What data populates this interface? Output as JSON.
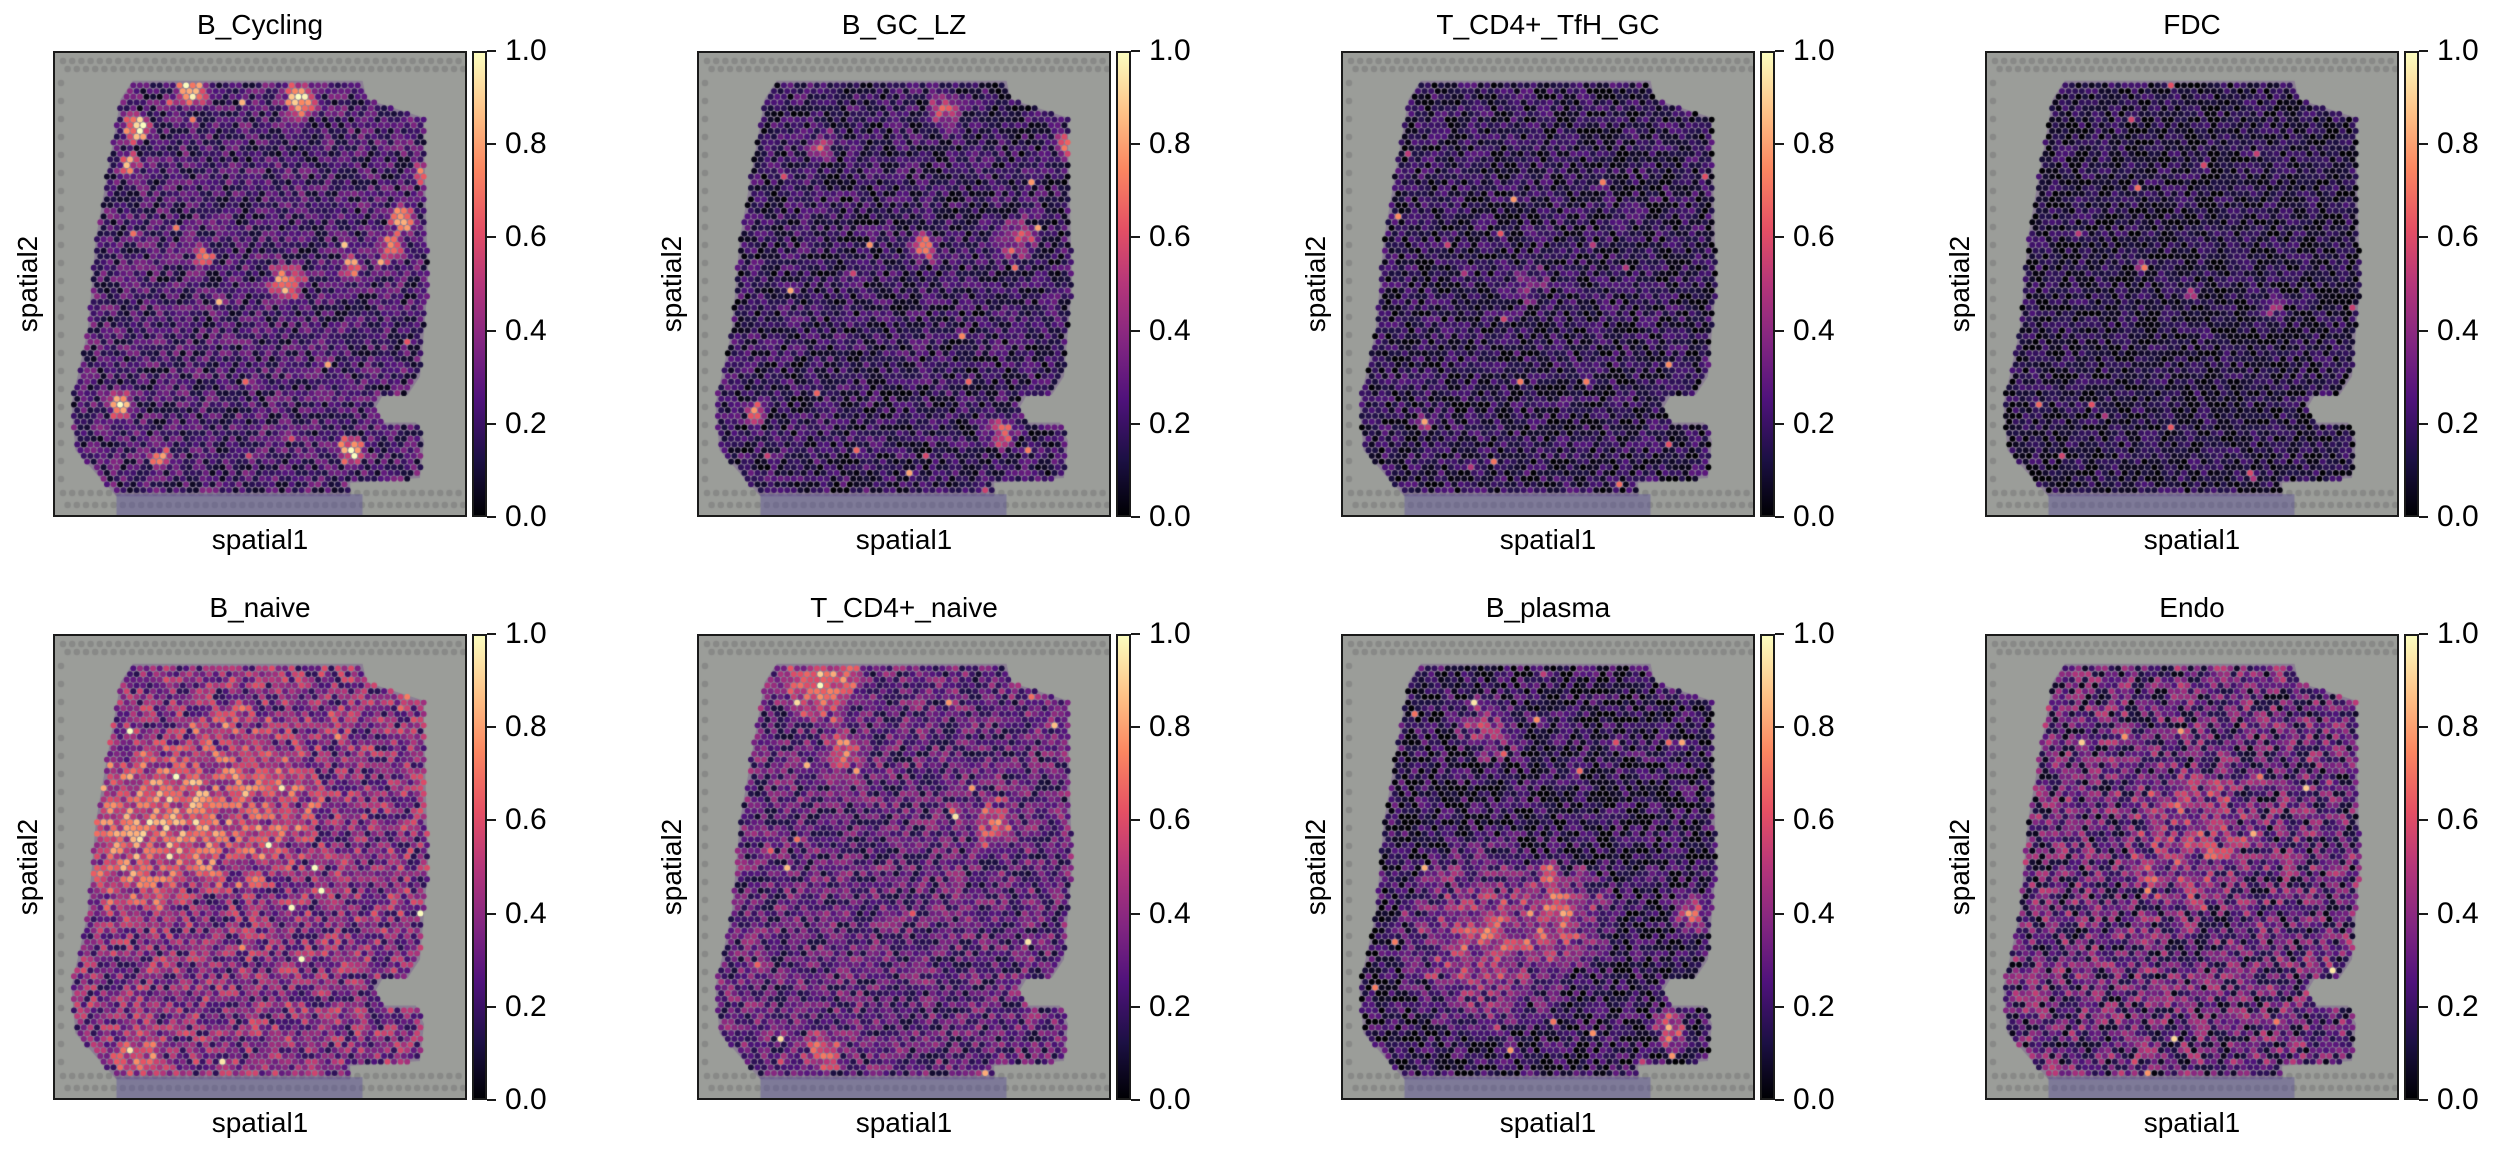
{
  "figure": {
    "colormap": "magma",
    "background_color": "#9b9d99",
    "border_color": "#1a1a1a"
  },
  "chart_data": [
    {
      "type": "heatmap",
      "title": "B_Cycling",
      "xlabel": "spatial1",
      "ylabel": "spatial2",
      "vmin": 0.0,
      "vmax": 1.0,
      "colorbar_ticks": [
        "0.0",
        "0.2",
        "0.4",
        "0.6",
        "0.8",
        "1.0"
      ],
      "pattern": "discrete bright follicle-like clusters"
    },
    {
      "type": "heatmap",
      "title": "B_GC_LZ",
      "xlabel": "spatial1",
      "ylabel": "spatial2",
      "vmin": 0.0,
      "vmax": 1.0,
      "colorbar_ticks": [
        "0.0",
        "0.2",
        "0.4",
        "0.6",
        "0.8",
        "1.0"
      ],
      "pattern": "scattered moderate clusters"
    },
    {
      "type": "heatmap",
      "title": "T_CD4+_TfH_GC",
      "xlabel": "spatial1",
      "ylabel": "spatial2",
      "vmin": 0.0,
      "vmax": 1.0,
      "colorbar_ticks": [
        "0.0",
        "0.2",
        "0.4",
        "0.6",
        "0.8",
        "1.0"
      ],
      "pattern": "mostly low, sparse spots"
    },
    {
      "type": "heatmap",
      "title": "FDC",
      "xlabel": "spatial1",
      "ylabel": "spatial2",
      "vmin": 0.0,
      "vmax": 1.0,
      "colorbar_ticks": [
        "0.0",
        "0.2",
        "0.4",
        "0.6",
        "0.8",
        "1.0"
      ],
      "pattern": "mostly low, few bright spots"
    },
    {
      "type": "heatmap",
      "title": "B_naive",
      "xlabel": "spatial1",
      "ylabel": "spatial2",
      "vmin": 0.0,
      "vmax": 1.0,
      "colorbar_ticks": [
        "0.0",
        "0.2",
        "0.4",
        "0.6",
        "0.8",
        "1.0"
      ],
      "pattern": "broadly elevated, higher on left/center"
    },
    {
      "type": "heatmap",
      "title": "T_CD4+_naive",
      "xlabel": "spatial1",
      "ylabel": "spatial2",
      "vmin": 0.0,
      "vmax": 1.0,
      "colorbar_ticks": [
        "0.0",
        "0.2",
        "0.4",
        "0.6",
        "0.8",
        "1.0"
      ],
      "pattern": "moderate, high in upper-left region"
    },
    {
      "type": "heatmap",
      "title": "B_plasma",
      "xlabel": "spatial1",
      "ylabel": "spatial2",
      "vmin": 0.0,
      "vmax": 1.0,
      "colorbar_ticks": [
        "0.0",
        "0.2",
        "0.4",
        "0.6",
        "0.8",
        "1.0"
      ],
      "pattern": "horizontal band in lower-middle"
    },
    {
      "type": "heatmap",
      "title": "Endo",
      "xlabel": "spatial1",
      "ylabel": "spatial2",
      "vmin": 0.0,
      "vmax": 1.0,
      "colorbar_ticks": [
        "0.0",
        "0.2",
        "0.4",
        "0.6",
        "0.8",
        "1.0"
      ],
      "pattern": "moderate throughout with scattered bright spots"
    }
  ]
}
